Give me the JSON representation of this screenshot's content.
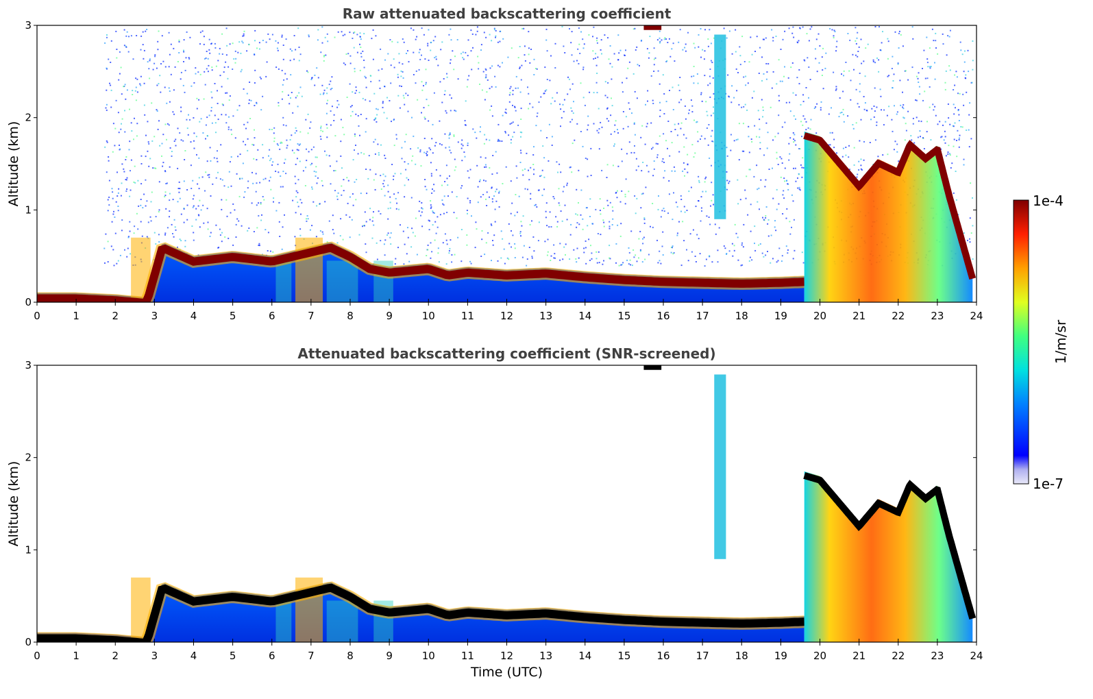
{
  "chart_data": [
    {
      "type": "heatmap",
      "title": "Raw attenuated backscattering coefficient",
      "xlabel": "",
      "ylabel": "Altitude (km)",
      "xlim": [
        0,
        24
      ],
      "ylim": [
        0,
        3
      ],
      "x_ticks": [
        "0",
        "1",
        "2",
        "3",
        "4",
        "5",
        "6",
        "7",
        "8",
        "9",
        "10",
        "11",
        "12",
        "13",
        "14",
        "15",
        "16",
        "17",
        "18",
        "19",
        "20",
        "21",
        "22",
        "23",
        "24"
      ],
      "y_ticks": [
        "0",
        "1",
        "2",
        "3"
      ],
      "screened": false,
      "layers": [
        {
          "name": "boundary-layer-top",
          "x": [
            0,
            1,
            2,
            2.8,
            3.2,
            4,
            5,
            6,
            7,
            7.5,
            8,
            8.5,
            9,
            10,
            10.5,
            11,
            12,
            13,
            14,
            15,
            16,
            17,
            18,
            19,
            19.6
          ],
          "y": [
            0.1,
            0.1,
            0.08,
            0.05,
            0.65,
            0.5,
            0.55,
            0.5,
            0.6,
            0.65,
            0.55,
            0.42,
            0.38,
            0.42,
            0.35,
            0.38,
            0.35,
            0.37,
            0.33,
            0.3,
            0.28,
            0.27,
            0.26,
            0.27,
            0.28
          ]
        },
        {
          "name": "evening-cloud",
          "x": [
            19.6,
            20,
            20.5,
            21,
            21.5,
            22,
            22.3,
            22.7,
            23,
            23.3,
            23.9
          ],
          "y": [
            1.85,
            1.8,
            1.55,
            1.3,
            1.55,
            1.45,
            1.75,
            1.6,
            1.7,
            1.2,
            0.3
          ]
        }
      ]
    },
    {
      "type": "heatmap",
      "title": "Attenuated backscattering coefficient (SNR-screened)",
      "xlabel": "Time (UTC)",
      "ylabel": "Altitude (km)",
      "xlim": [
        0,
        24
      ],
      "ylim": [
        0,
        3
      ],
      "x_ticks": [
        "0",
        "1",
        "2",
        "3",
        "4",
        "5",
        "6",
        "7",
        "8",
        "9",
        "10",
        "11",
        "12",
        "13",
        "14",
        "15",
        "16",
        "17",
        "18",
        "19",
        "20",
        "21",
        "22",
        "23",
        "24"
      ],
      "y_ticks": [
        "0",
        "1",
        "2",
        "3"
      ],
      "screened": true
    }
  ],
  "colorbar": {
    "label": "1/m/sr",
    "max_label": "1e-4",
    "min_label": "1e-7",
    "colormap": [
      "#e8e8f8",
      "#0000ff",
      "#0080ff",
      "#00e0e0",
      "#40ff80",
      "#e0ff20",
      "#ffa000",
      "#ff2000",
      "#800000"
    ]
  }
}
